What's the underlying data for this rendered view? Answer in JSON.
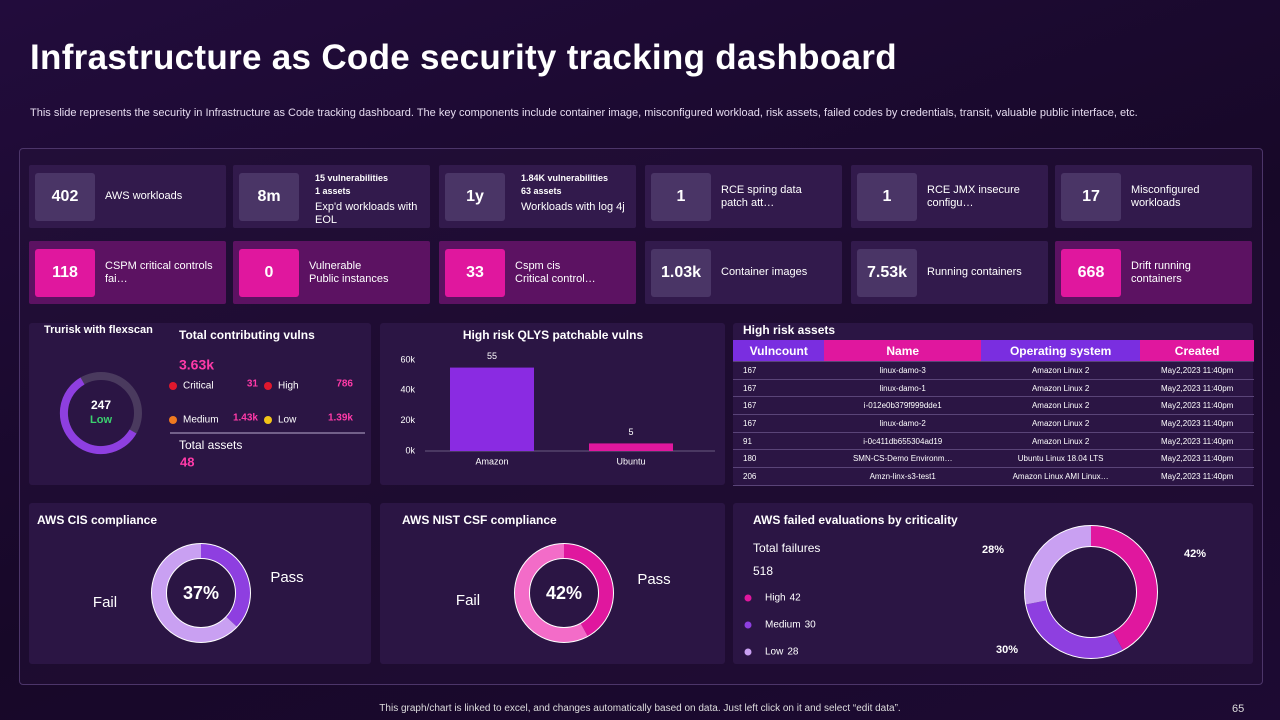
{
  "header": {
    "title": "Infrastructure as Code security tracking dashboard",
    "subtitle": "This slide represents the security in Infrastructure as Code tracking dashboard. The key components include container image, misconfigured workload, risk assets, failed codes by credentials, transit, valuable public interface, etc."
  },
  "kpis": [
    {
      "value": 402,
      "label": "AWS workloads"
    },
    {
      "value": "8m",
      "details": [
        "15 vulnerabilities",
        "1 assets"
      ],
      "label": "Exp'd workloads with\nEOL"
    },
    {
      "value": "1y",
      "details": [
        "1.84K vulnerabilities",
        "63 assets"
      ],
      "label": "Workloads with log 4j"
    },
    {
      "value": 1,
      "label": "RCE spring data\npatch att…"
    },
    {
      "value": 1,
      "label": "RCE JMX insecure\nconfigu…"
    },
    {
      "value": 17,
      "label": "Misconfigured\nworkloads"
    },
    {
      "value": 118,
      "label": "CSPM critical controls\nfai…"
    },
    {
      "value": 0,
      "label": "Vulnerable\nPublic instances"
    },
    {
      "value": 33,
      "label": "Cspm cis\nCritical control…"
    },
    {
      "value": "1.03k",
      "label": "Container images"
    },
    {
      "value": "7.53k",
      "label": "Running containers"
    },
    {
      "value": 668,
      "label": "Drift running\ncontainers"
    }
  ],
  "trurisk": {
    "title": "Trurisk with flexscan",
    "score": 247,
    "rating": "Low"
  },
  "vulns": {
    "title": "Total contributing vulns",
    "total": "3.63k",
    "levels": [
      {
        "name": "Critical",
        "value": 31,
        "color": "#e0182d"
      },
      {
        "name": "High",
        "value": 786,
        "color": "#e0182d"
      },
      {
        "name": "Medium",
        "value": "1.43k",
        "color": "#f07a20"
      },
      {
        "name": "Low",
        "value": "1.39k",
        "color": "#f2c418"
      }
    ],
    "assets_label": "Total assets",
    "assets": 48
  },
  "qlys": {
    "type": "bar",
    "title": "High risk QLYS patchable vulns",
    "categories": [
      "Amazon",
      "Ubuntu"
    ],
    "values": [
      55,
      5
    ],
    "colors": [
      "#8a2be2",
      "#e0179e"
    ],
    "ylim": [
      0,
      60
    ],
    "yticks": [
      {
        "value": 0,
        "label": "0k"
      },
      {
        "value": 20,
        "label": "20k"
      },
      {
        "value": 40,
        "label": "40k"
      },
      {
        "value": 60,
        "label": "60k"
      }
    ]
  },
  "assets_table": {
    "title": "High risk assets",
    "columns": [
      "Vulncount",
      "Name",
      "Operating system",
      "Created"
    ],
    "rows": [
      [
        167,
        "linux-damo-3",
        "Amazon Linux 2",
        "May2,2023  11:40pm"
      ],
      [
        167,
        "linux-damo-1",
        "Amazon Linux 2",
        "May2,2023  11:40pm"
      ],
      [
        167,
        "i-012e0b379f999dde1",
        "Amazon Linux 2",
        "May2,2023  11:40pm"
      ],
      [
        167,
        "linux-damo-2",
        "Amazon Linux 2",
        "May2,2023  11:40pm"
      ],
      [
        91,
        "i-0c411db655304ad19",
        "Amazon Linux 2",
        "May2,2023  11:40pm"
      ],
      [
        180,
        "SMN-CS-Demo Environm…",
        "Ubuntu Linux 18.04 LTS",
        "May2,2023  11:40pm"
      ],
      [
        206,
        "Amzn-linx-s3-test1",
        "Amazon Linux AMI Linux…",
        "May2,2023  11:40pm"
      ]
    ]
  },
  "cis": {
    "type": "pie",
    "title": "AWS CIS compliance",
    "center": "37%",
    "slices": [
      {
        "name": "Pass",
        "value": 37,
        "color": "#8e3fe0"
      },
      {
        "name": "Fail",
        "value": 63,
        "color": "#c9a0f2"
      }
    ]
  },
  "nist": {
    "type": "pie",
    "title": "AWS NIST CSF compliance",
    "center": "42%",
    "slices": [
      {
        "name": "Pass",
        "value": 42,
        "color": "#e0179e"
      },
      {
        "name": "Fail",
        "value": 58,
        "color": "#f36cc8"
      }
    ]
  },
  "failed": {
    "type": "pie",
    "title": "AWS failed evaluations by criticality",
    "total_label": "Total failures",
    "total": 518,
    "slices": [
      {
        "name": "High",
        "value": 42,
        "value_label": "42%",
        "color": "#e0179e"
      },
      {
        "name": "Medium",
        "value": 30,
        "value_label": "30%",
        "color": "#8e3fe0"
      },
      {
        "name": "Low",
        "value": 28,
        "value_label": "28%",
        "color": "#c9a0f2"
      }
    ]
  },
  "footer": {
    "note": "This graph/chart is linked to excel, and changes automatically based on data. Just left click on it and select “edit data”.",
    "page": 65
  }
}
